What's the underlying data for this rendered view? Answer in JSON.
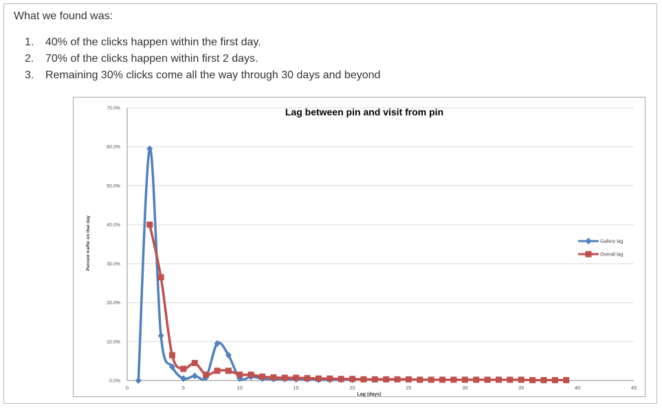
{
  "intro": "What we found was:",
  "findings": [
    {
      "num": "1.",
      "text": "40% of the clicks happen within the first day."
    },
    {
      "num": "2.",
      "text": "70% of the clicks happen within first 2 days."
    },
    {
      "num": "3.",
      "text": "Remaining 30% clicks come all the way through 30 days and beyond"
    }
  ],
  "chart_data": {
    "type": "line",
    "title": "Lag between pin and visit from pin",
    "xlabel": "Lag (days)",
    "ylabel": "Percent traffic on that day",
    "xlim": [
      0,
      45
    ],
    "ylim": [
      0,
      70
    ],
    "x_ticks": [
      0,
      5,
      10,
      15,
      20,
      25,
      30,
      35,
      40,
      45
    ],
    "y_ticks": [
      0,
      10,
      20,
      30,
      40,
      50,
      60,
      70
    ],
    "y_tick_labels": [
      "0.0%",
      "10.0%",
      "20.0%",
      "30.0%",
      "40.0%",
      "50.0%",
      "60.0%",
      "70.0%"
    ],
    "grid": "horizontal",
    "legend_position": "right",
    "series": [
      {
        "name": "Gallery lag",
        "color": "#4f81bd",
        "marker": "diamond",
        "points": [
          [
            1,
            0
          ],
          [
            2,
            59.5
          ],
          [
            3,
            11.5
          ],
          [
            4,
            3.5
          ],
          [
            5,
            0.5
          ],
          [
            6,
            1.2
          ],
          [
            7,
            0.8
          ],
          [
            8,
            9.5
          ],
          [
            9,
            6.5
          ],
          [
            10,
            0.5
          ],
          [
            11,
            1.0
          ],
          [
            12,
            0.5
          ],
          [
            13,
            0.4
          ],
          [
            14,
            0.4
          ],
          [
            15,
            0.3
          ],
          [
            16,
            0.3
          ],
          [
            17,
            0.2
          ],
          [
            18,
            0.2
          ],
          [
            19,
            0.2
          ],
          [
            20,
            0.2
          ]
        ]
      },
      {
        "name": "Overall lag",
        "color": "#c0504d",
        "marker": "square",
        "points": [
          [
            2,
            40
          ],
          [
            3,
            26.5
          ],
          [
            4,
            6.5
          ],
          [
            5,
            3
          ],
          [
            6,
            4.5
          ],
          [
            7,
            1.5
          ],
          [
            8,
            2.5
          ],
          [
            9,
            2.5
          ],
          [
            10,
            1.5
          ],
          [
            11,
            1.5
          ],
          [
            12,
            1
          ],
          [
            13,
            0.8
          ],
          [
            14,
            0.7
          ],
          [
            15,
            0.7
          ],
          [
            16,
            0.6
          ],
          [
            17,
            0.5
          ],
          [
            18,
            0.5
          ],
          [
            19,
            0.4
          ],
          [
            20,
            0.4
          ],
          [
            21,
            0.3
          ],
          [
            22,
            0.3
          ],
          [
            23,
            0.3
          ],
          [
            24,
            0.3
          ],
          [
            25,
            0.3
          ],
          [
            26,
            0.2
          ],
          [
            27,
            0.2
          ],
          [
            28,
            0.2
          ],
          [
            29,
            0.2
          ],
          [
            30,
            0.2
          ],
          [
            31,
            0.2
          ],
          [
            32,
            0.2
          ],
          [
            33,
            0.2
          ],
          [
            34,
            0.2
          ],
          [
            35,
            0.2
          ],
          [
            36,
            0.1
          ],
          [
            37,
            0.1
          ],
          [
            38,
            0.1
          ],
          [
            39,
            0.1
          ]
        ]
      }
    ]
  }
}
